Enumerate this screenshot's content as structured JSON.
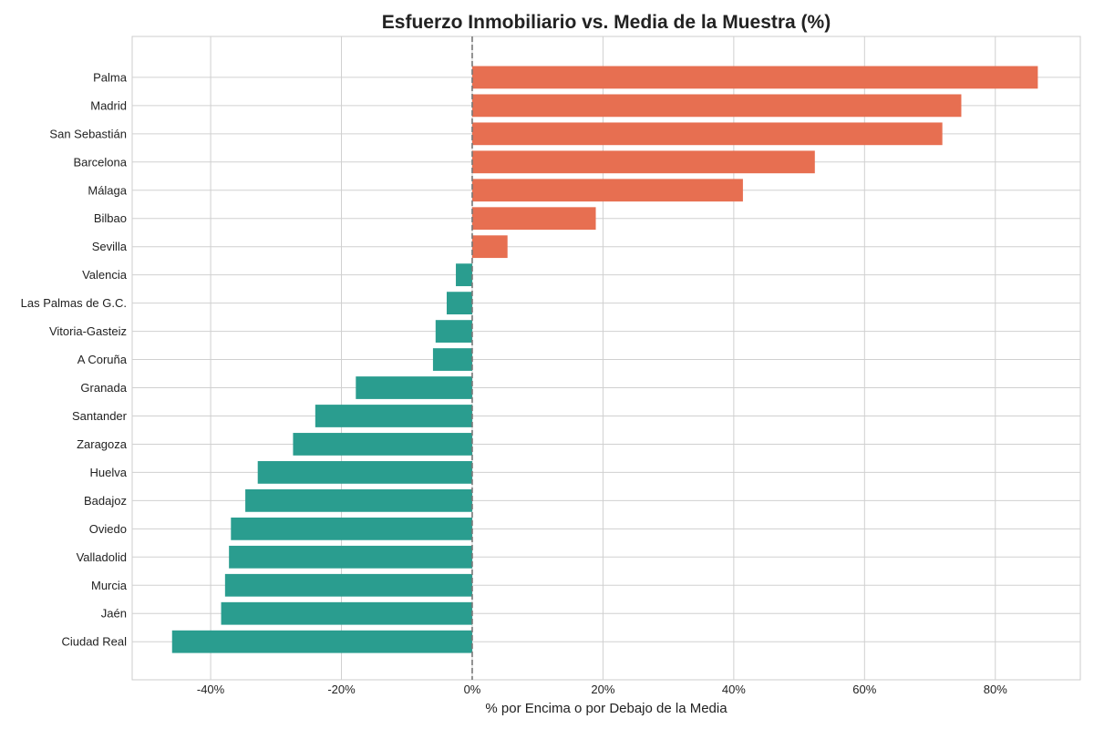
{
  "chart_data": {
    "type": "bar",
    "orientation": "horizontal",
    "title": "Esfuerzo Inmobiliario vs. Media de la Muestra (%)",
    "xlabel": "% por Encima o por Debajo de la Media",
    "ylabel": "",
    "xlim": [
      -52,
      93
    ],
    "x_ticks": [
      -40,
      -20,
      0,
      20,
      40,
      60,
      80
    ],
    "x_tick_labels": [
      "-40%",
      "-20%",
      "0%",
      "20%",
      "40%",
      "60%",
      "80%"
    ],
    "grid": true,
    "reference_line": 0,
    "categories": [
      "Palma",
      "Madrid",
      "San Sebastián",
      "Barcelona",
      "Málaga",
      "Bilbao",
      "Sevilla",
      "Valencia",
      "Las Palmas de G.C.",
      "Vitoria-Gasteiz",
      "A Coruña",
      "Granada",
      "Santander",
      "Zaragoza",
      "Huelva",
      "Badajoz",
      "Oviedo",
      "Valladolid",
      "Murcia",
      "Jaén",
      "Ciudad Real"
    ],
    "values": [
      86.5,
      74.8,
      71.9,
      52.4,
      41.4,
      18.9,
      5.4,
      -2.5,
      -3.9,
      -5.6,
      -6.0,
      -17.8,
      -24.0,
      -27.4,
      -32.8,
      -34.7,
      -36.9,
      -37.2,
      -37.8,
      -38.4,
      -45.9
    ],
    "colors": {
      "positive": "#E76F51",
      "negative": "#2A9D8F"
    }
  }
}
